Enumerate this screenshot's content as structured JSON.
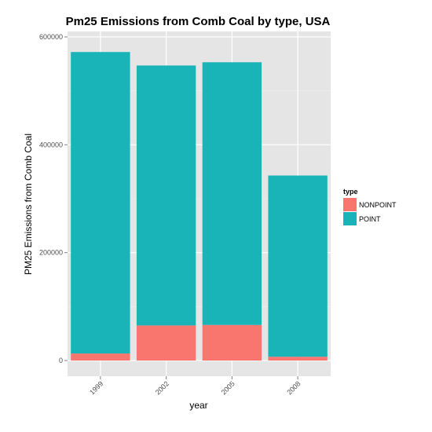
{
  "chart_data": {
    "type": "bar",
    "stacked": true,
    "title": "Pm25 Emissions from Comb Coal by type, USA",
    "xlabel": "year",
    "ylabel": "PM25 Emissions from Comb Coal",
    "categories": [
      "1999",
      "2002",
      "2005",
      "2008"
    ],
    "series": [
      {
        "name": "NONPOINT",
        "color": "#f8766d",
        "values": [
          13000,
          65000,
          66000,
          7000
        ]
      },
      {
        "name": "POINT",
        "color": "#19b4b8",
        "values": [
          559000,
          482000,
          487000,
          336000
        ]
      }
    ],
    "ylim": [
      0,
      600000
    ],
    "yticks": [
      0,
      200000,
      400000,
      600000
    ],
    "ytick_labels": [
      "0",
      "200000",
      "400000",
      "600000"
    ],
    "legend": {
      "title": "type",
      "position": "right"
    },
    "grid": true,
    "panel_background": "#e5e5e5"
  }
}
